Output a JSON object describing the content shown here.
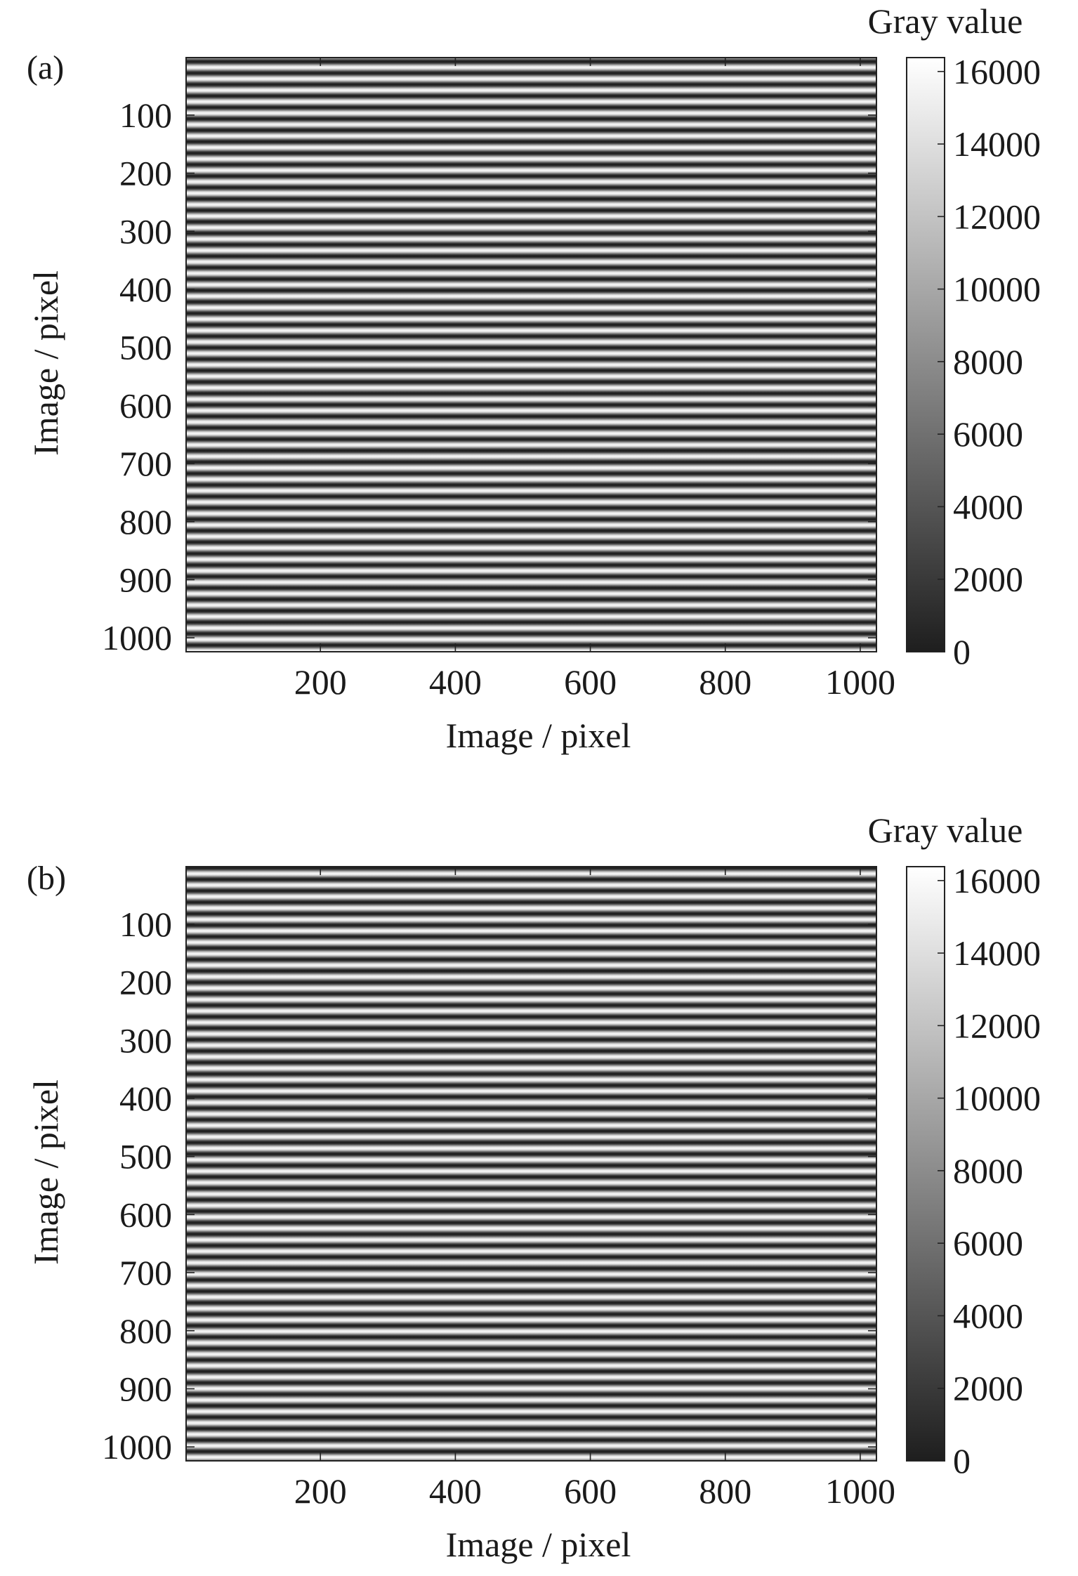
{
  "chart_data": [
    {
      "type": "heatmap",
      "panel_label": "(a)",
      "description_of_pattern": "horizontal sinusoidal fringes, constant along x, periodic along y",
      "xlabel": "Image / pixel",
      "ylabel": "Image / pixel",
      "xlim": [
        1,
        1024
      ],
      "ylim": [
        1,
        1024
      ],
      "y_reversed": true,
      "xticks": [
        200,
        400,
        600,
        800,
        1000
      ],
      "yticks": [
        100,
        200,
        300,
        400,
        500,
        600,
        700,
        800,
        900,
        1000
      ],
      "fringe_period_pixels": 19.7,
      "fringe_phase_rad": 0.6,
      "value_range": [
        0,
        16383
      ],
      "colorbar": {
        "label": "Gray value",
        "ticks": [
          0,
          2000,
          4000,
          6000,
          8000,
          10000,
          12000,
          14000,
          16000
        ],
        "colormap": "gray",
        "range": [
          0,
          16383
        ]
      }
    },
    {
      "type": "heatmap",
      "panel_label": "(b)",
      "description_of_pattern": "horizontal sinusoidal fringes, constant along x, periodic along y",
      "xlabel": "Image / pixel",
      "ylabel": "Image / pixel",
      "xlim": [
        1,
        1024
      ],
      "ylim": [
        1,
        1024
      ],
      "y_reversed": true,
      "xticks": [
        200,
        400,
        600,
        800,
        1000
      ],
      "yticks": [
        100,
        200,
        300,
        400,
        500,
        600,
        700,
        800,
        900,
        1000
      ],
      "fringe_period_pixels": 19.7,
      "fringe_phase_rad": 2.1,
      "value_range": [
        0,
        16383
      ],
      "colorbar": {
        "label": "Gray value",
        "ticks": [
          0,
          2000,
          4000,
          6000,
          8000,
          10000,
          12000,
          14000,
          16000
        ],
        "colormap": "gray",
        "range": [
          0,
          16383
        ]
      }
    }
  ]
}
